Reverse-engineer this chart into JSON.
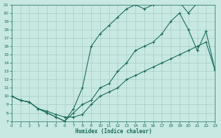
{
  "xlabel": "Humidex (Indice chaleur)",
  "bg_color": "#c8e8e2",
  "grid_color": "#a8ccc6",
  "line_color": "#1a6b5a",
  "xlim": [
    0,
    23
  ],
  "ylim": [
    7,
    21
  ],
  "xticks": [
    0,
    1,
    2,
    3,
    4,
    5,
    6,
    7,
    8,
    9,
    10,
    11,
    12,
    13,
    14,
    15,
    16,
    17,
    18,
    19,
    20,
    21,
    22,
    23
  ],
  "yticks": [
    7,
    8,
    9,
    10,
    11,
    12,
    13,
    14,
    15,
    16,
    17,
    18,
    19,
    20,
    21
  ],
  "line1_x": [
    0,
    1,
    2,
    3,
    4,
    5,
    6,
    7,
    8,
    9,
    10,
    11,
    12,
    13,
    14,
    15,
    16,
    17,
    18,
    19,
    20,
    21,
    22,
    23
  ],
  "line1_y": [
    10,
    9.5,
    9.3,
    8.5,
    8.2,
    7.8,
    7.5,
    7.5,
    7.8,
    9.0,
    10.0,
    10.5,
    11.0,
    12.0,
    12.5,
    13.0,
    13.5,
    14.0,
    14.5,
    15.0,
    15.5,
    16.0,
    16.5,
    13.2
  ],
  "line2_x": [
    0,
    1,
    2,
    3,
    4,
    5,
    6,
    7,
    8,
    9,
    10,
    11,
    12,
    13,
    14,
    15,
    16,
    17,
    18,
    19,
    20,
    21,
    22
  ],
  "line2_y": [
    10,
    9.5,
    9.3,
    8.5,
    8.0,
    7.5,
    7.0,
    8.5,
    11.0,
    16.0,
    17.5,
    18.5,
    19.5,
    20.5,
    21.0,
    20.5,
    21.0,
    21.2,
    21.3,
    21.3,
    20.0,
    21.2,
    21.2
  ],
  "line3_x": [
    0,
    1,
    2,
    3,
    4,
    5,
    6,
    7,
    8,
    9,
    10,
    11,
    12,
    13,
    14,
    15,
    16,
    17,
    18,
    19,
    20,
    21,
    22,
    23
  ],
  "line3_y": [
    10,
    9.5,
    9.3,
    8.5,
    8.0,
    7.5,
    7.0,
    8.0,
    9.0,
    9.5,
    11.0,
    11.5,
    13.0,
    14.0,
    15.5,
    16.0,
    16.5,
    17.5,
    19.0,
    20.0,
    18.0,
    15.5,
    17.8,
    13.2
  ]
}
